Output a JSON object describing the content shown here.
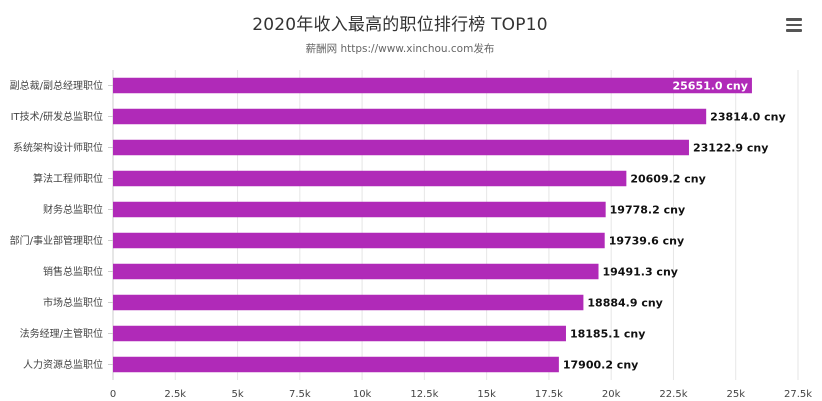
{
  "header": {
    "title": "2020年收入最高的职位排行榜 TOP10",
    "subtitle": "薪酬网 https://www.xinchou.com发布"
  },
  "toolbar": {
    "menu_icon": "hamburger-menu-icon"
  },
  "chart_data": {
    "type": "bar",
    "orientation": "horizontal",
    "categories": [
      "副总裁/副总经理职位",
      "IT技术/研发总监职位",
      "系统架构设计师职位",
      "算法工程师职位",
      "财务总监职位",
      "部门/事业部管理职位",
      "销售总监职位",
      "市场总监职位",
      "法务经理/主管职位",
      "人力资源总监职位"
    ],
    "values": [
      25651.0,
      23814.0,
      23122.9,
      20609.2,
      19778.2,
      19739.6,
      19491.3,
      18884.9,
      18185.1,
      17900.2
    ],
    "value_labels": [
      "25651.0 cny",
      "23814.0 cny",
      "23122.9 cny",
      "20609.2 cny",
      "19778.2 cny",
      "19739.6 cny",
      "19491.3 cny",
      "18884.9 cny",
      "18185.1 cny",
      "17900.2 cny"
    ],
    "xlim": [
      0,
      27500
    ],
    "xticks": [
      0,
      2500,
      5000,
      7500,
      10000,
      12500,
      15000,
      17500,
      20000,
      22500,
      25000,
      27500
    ],
    "xtick_labels": [
      "0",
      "2.5k",
      "5k",
      "7.5k",
      "10k",
      "12.5k",
      "15k",
      "17.5k",
      "20k",
      "22.5k",
      "25k",
      "27.5k"
    ],
    "grid": true,
    "bar_color": "#b02ab8"
  }
}
